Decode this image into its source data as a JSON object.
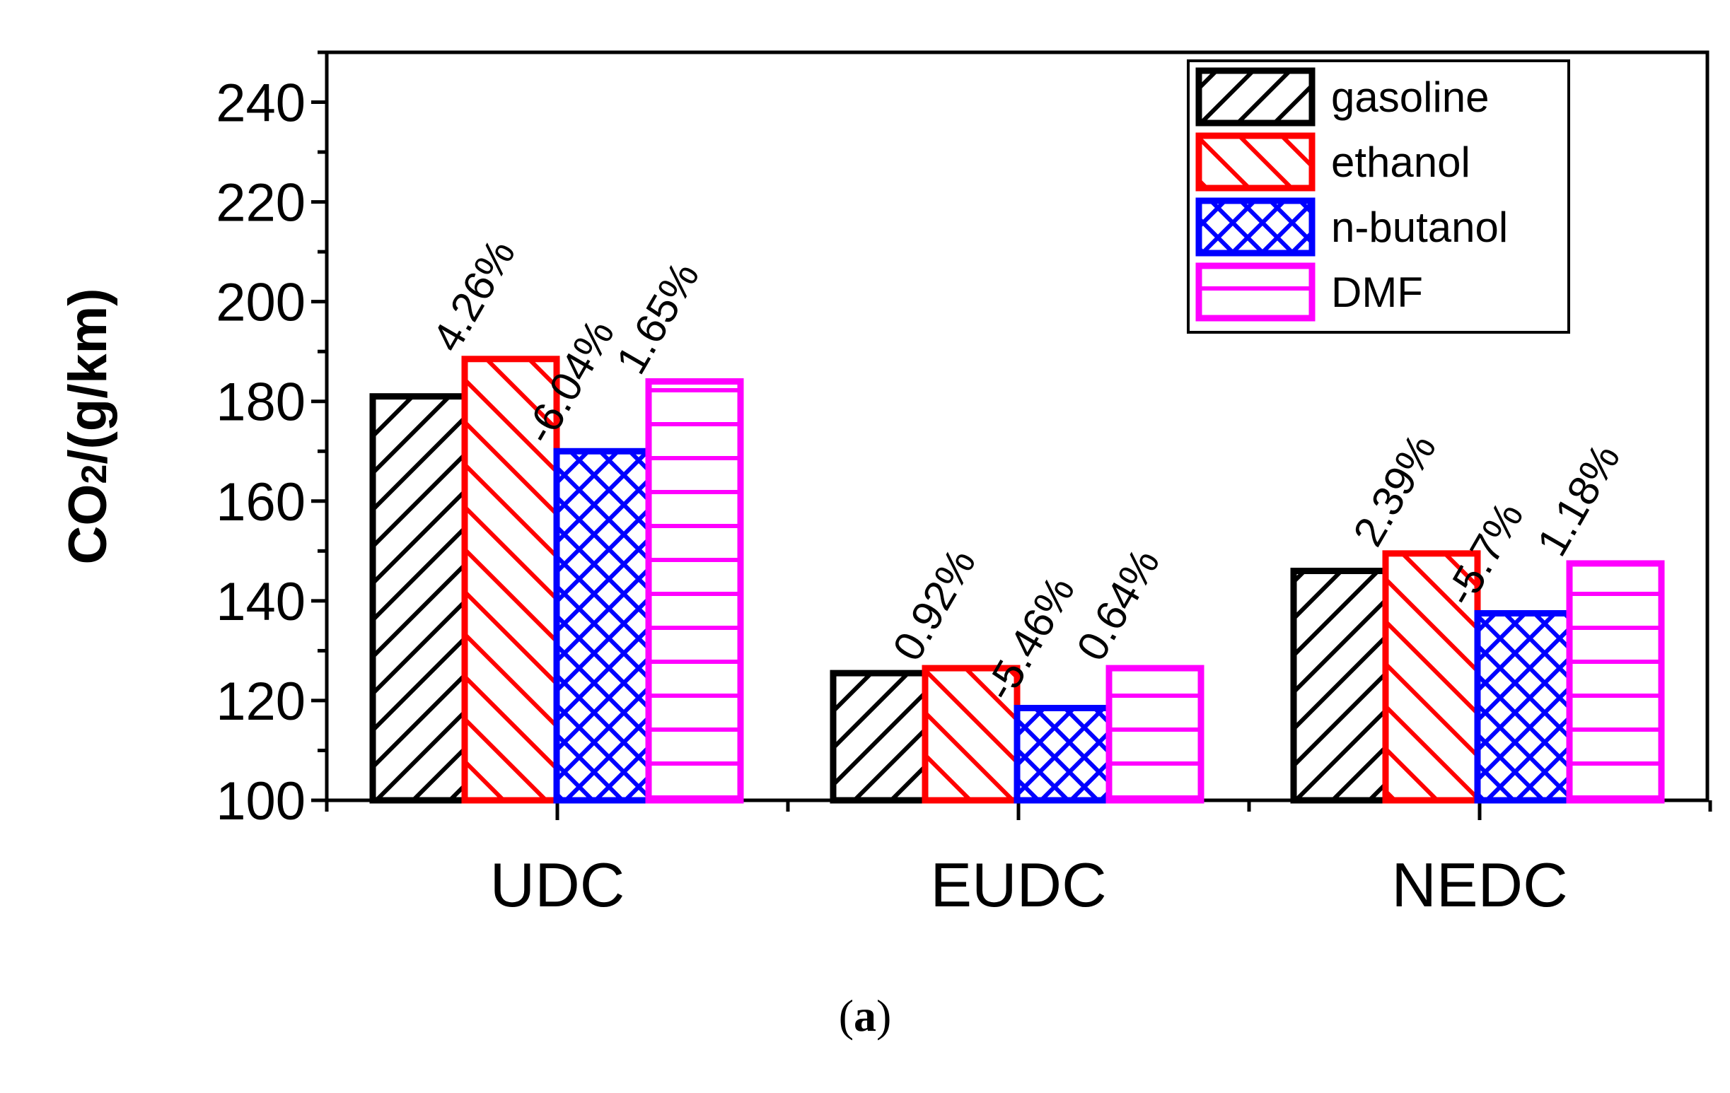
{
  "chart_data": {
    "type": "bar",
    "categories": [
      "UDC",
      "EUDC",
      "NEDC"
    ],
    "series": [
      {
        "name": "gasoline",
        "values": [
          181,
          125.5,
          146
        ],
        "color": "#000000",
        "pattern": "diag-up"
      },
      {
        "name": "ethanol",
        "values": [
          188.5,
          126.5,
          149.5
        ],
        "color": "#ff0000",
        "pattern": "diag-down"
      },
      {
        "name": "n-butanol",
        "values": [
          170,
          118.5,
          137.5
        ],
        "color": "#0000ff",
        "pattern": "cross"
      },
      {
        "name": "DMF",
        "values": [
          184,
          126.5,
          147.5
        ],
        "color": "#ff00ff",
        "pattern": "horizontal"
      }
    ],
    "annotations": [
      {
        "category": "UDC",
        "series": "ethanol",
        "text": "4.26%"
      },
      {
        "category": "UDC",
        "series": "n-butanol",
        "text": "-6.04%"
      },
      {
        "category": "UDC",
        "series": "DMF",
        "text": "1.65%"
      },
      {
        "category": "EUDC",
        "series": "ethanol",
        "text": "0.92%"
      },
      {
        "category": "EUDC",
        "series": "n-butanol",
        "text": "-5.46%"
      },
      {
        "category": "EUDC",
        "series": "DMF",
        "text": "0.64%"
      },
      {
        "category": "NEDC",
        "series": "ethanol",
        "text": "2.39%"
      },
      {
        "category": "NEDC",
        "series": "n-butanol",
        "text": "-5.7%"
      },
      {
        "category": "NEDC",
        "series": "DMF",
        "text": "1.18%"
      }
    ],
    "ylabel_main": "CO",
    "ylabel_sub": "2",
    "ylabel_rest": "/(g/km)",
    "xlabel": "",
    "ylim": [
      100,
      250
    ],
    "yticks": [
      100,
      120,
      140,
      160,
      180,
      200,
      220,
      240
    ],
    "legend_position": "top-right"
  },
  "caption": {
    "open": "(",
    "letter": "a",
    "close": ")"
  }
}
